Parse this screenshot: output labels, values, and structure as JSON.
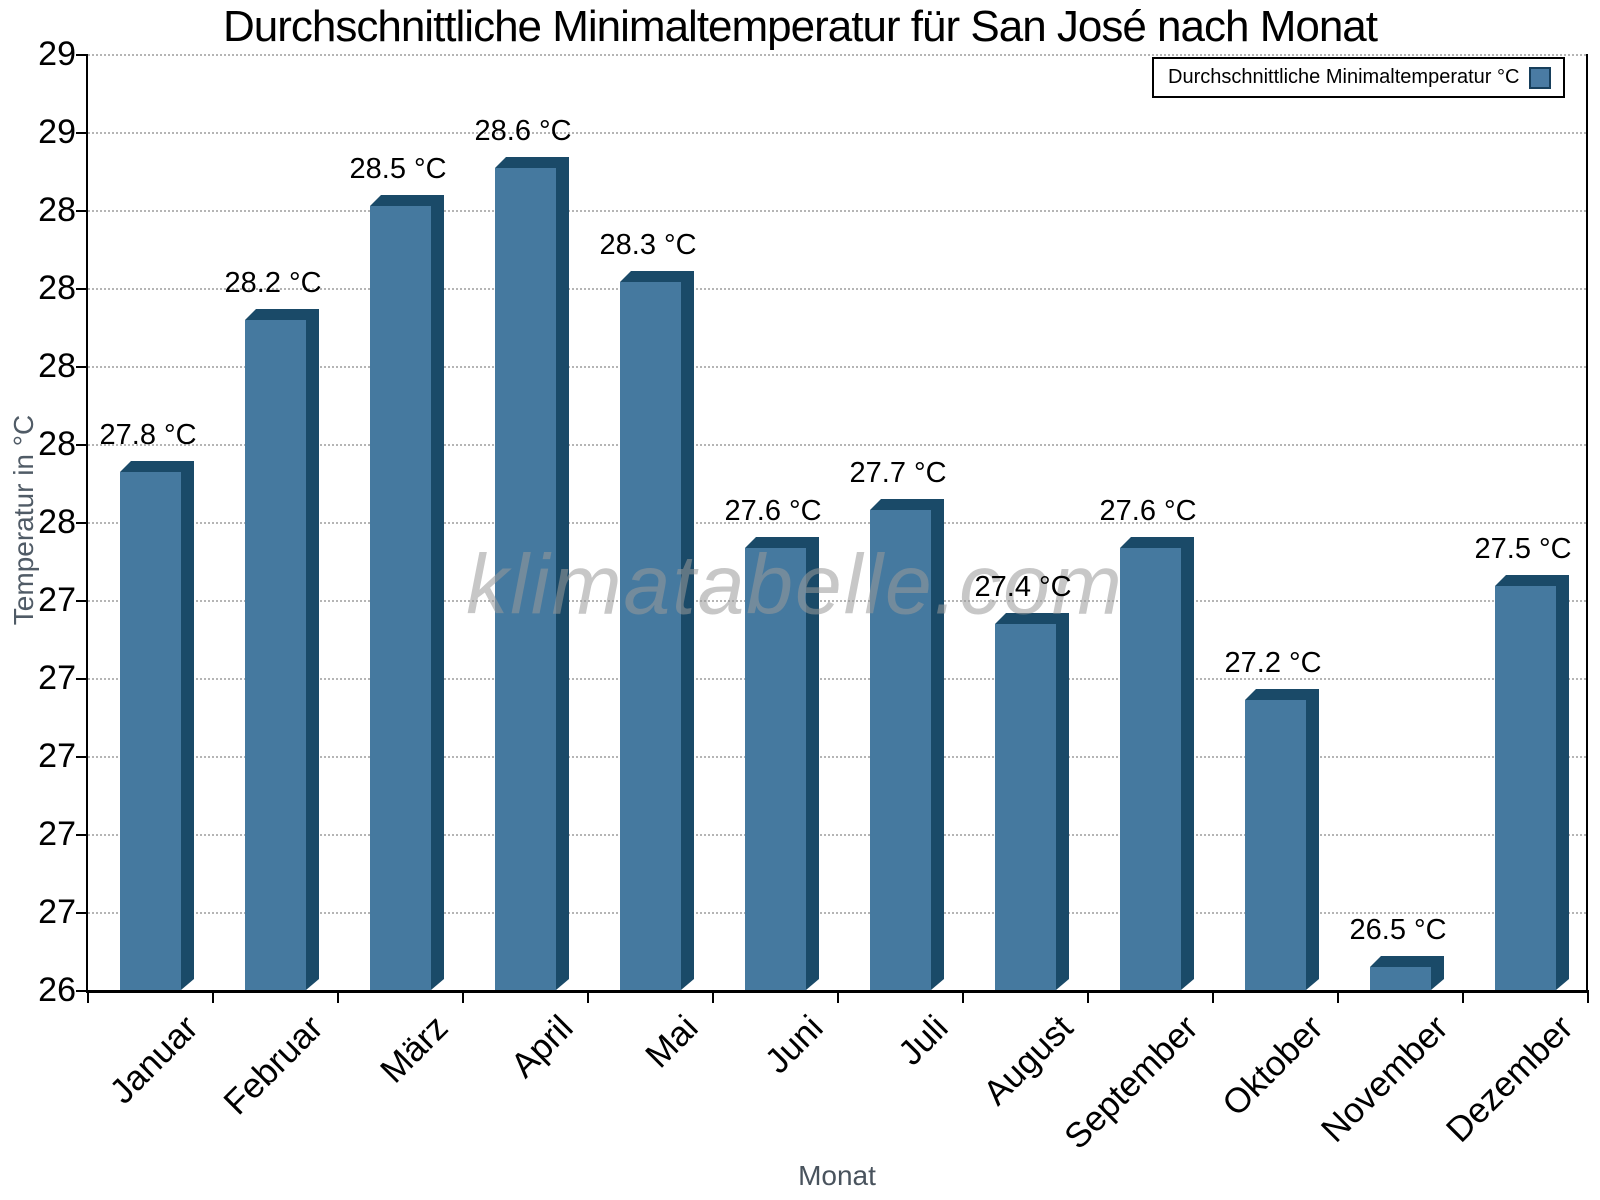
{
  "watermark": "klimatabelle.com",
  "chart_data": {
    "type": "bar",
    "title": "Durchschnittliche Minimaltemperatur für San José nach Monat",
    "xlabel": "Monat",
    "ylabel": "Temperatur in °C",
    "legend_label": "Durchschnittliche Minimaltemperatur °C",
    "legend_position": "top-right",
    "categories": [
      "Januar",
      "Februar",
      "März",
      "April",
      "Mai",
      "Juni",
      "Juli",
      "August",
      "September",
      "Oktober",
      "November",
      "Dezember"
    ],
    "values": [
      27.8,
      28.2,
      28.5,
      28.6,
      28.3,
      27.6,
      27.7,
      27.4,
      27.6,
      27.2,
      26.5,
      27.5
    ],
    "value_labels": [
      "27.8 °C",
      "28.2 °C",
      "28.5 °C",
      "28.6 °C",
      "28.3 °C",
      "27.6 °C",
      "27.7 °C",
      "27.4 °C",
      "27.6 °C",
      "27.2 °C",
      "26.5 °C",
      "27.5 °C"
    ],
    "unit": "°C",
    "ylim": [
      26.41,
      28.87
    ],
    "ytick_labels_top_to_bottom": [
      "29",
      "29",
      "28",
      "28",
      "28",
      "28",
      "28",
      "27",
      "27",
      "27",
      "27",
      "27",
      "26"
    ],
    "grid": "horizontal dotted",
    "colors": {
      "bar_face": "#45799f",
      "bar_shadow": "#1a4a68",
      "grid": "#b5b5b5",
      "axis": "#000000",
      "axis_title": "#505b66",
      "watermark": "#9a9a9a"
    }
  }
}
